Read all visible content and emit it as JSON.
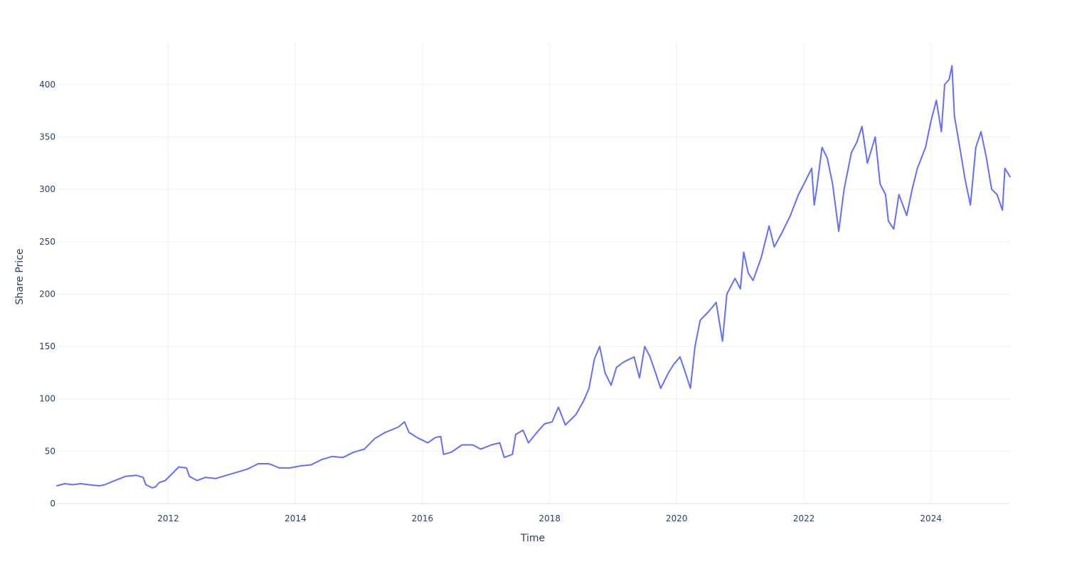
{
  "chart_data": {
    "type": "line",
    "title": "",
    "xlabel": "Time",
    "ylabel": "Share Price",
    "xlim": [
      "2010-04-01",
      "2025-03-31"
    ],
    "ylim": [
      0,
      440
    ],
    "x_ticks": [
      "2012",
      "2014",
      "2016",
      "2018",
      "2020",
      "2022",
      "2024"
    ],
    "y_ticks": [
      "0",
      "50",
      "100",
      "150",
      "200",
      "250",
      "300",
      "350",
      "400"
    ],
    "grid": true,
    "legend": "none",
    "line_color": "#636efa",
    "series": [
      {
        "points": [
          [
            "2010-04-01",
            17
          ],
          [
            "2010-05-15",
            19
          ],
          [
            "2010-07-01",
            18
          ],
          [
            "2010-08-15",
            19
          ],
          [
            "2010-10-01",
            18
          ],
          [
            "2010-12-01",
            17
          ],
          [
            "2011-01-01",
            18
          ],
          [
            "2011-03-01",
            22
          ],
          [
            "2011-05-01",
            26
          ],
          [
            "2011-07-01",
            27
          ],
          [
            "2011-08-10",
            25
          ],
          [
            "2011-08-25",
            18
          ],
          [
            "2011-10-01",
            15
          ],
          [
            "2011-10-20",
            16
          ],
          [
            "2011-11-10",
            20
          ],
          [
            "2011-12-15",
            22
          ],
          [
            "2012-02-01",
            30
          ],
          [
            "2012-03-01",
            35
          ],
          [
            "2012-04-15",
            34
          ],
          [
            "2012-05-01",
            26
          ],
          [
            "2012-06-15",
            22
          ],
          [
            "2012-08-01",
            25
          ],
          [
            "2012-10-01",
            24
          ],
          [
            "2012-12-01",
            27
          ],
          [
            "2013-02-01",
            30
          ],
          [
            "2013-04-01",
            33
          ],
          [
            "2013-06-01",
            38
          ],
          [
            "2013-08-01",
            38
          ],
          [
            "2013-10-01",
            34
          ],
          [
            "2013-12-01",
            34
          ],
          [
            "2014-02-01",
            36
          ],
          [
            "2014-04-01",
            37
          ],
          [
            "2014-06-01",
            42
          ],
          [
            "2014-08-01",
            45
          ],
          [
            "2014-10-01",
            44
          ],
          [
            "2014-12-01",
            49
          ],
          [
            "2015-02-01",
            52
          ],
          [
            "2015-04-01",
            62
          ],
          [
            "2015-06-01",
            68
          ],
          [
            "2015-08-15",
            73
          ],
          [
            "2015-09-20",
            78
          ],
          [
            "2015-10-15",
            68
          ],
          [
            "2015-12-01",
            63
          ],
          [
            "2016-02-01",
            58
          ],
          [
            "2016-03-15",
            63
          ],
          [
            "2016-04-15",
            64
          ],
          [
            "2016-05-01",
            47
          ],
          [
            "2016-06-15",
            49
          ],
          [
            "2016-08-15",
            56
          ],
          [
            "2016-10-15",
            56
          ],
          [
            "2016-12-01",
            52
          ],
          [
            "2017-02-01",
            56
          ],
          [
            "2017-03-20",
            58
          ],
          [
            "2017-04-15",
            44
          ],
          [
            "2017-06-01",
            47
          ],
          [
            "2017-06-20",
            66
          ],
          [
            "2017-08-01",
            70
          ],
          [
            "2017-09-01",
            58
          ],
          [
            "2017-10-15",
            67
          ],
          [
            "2017-12-01",
            76
          ],
          [
            "2018-01-15",
            78
          ],
          [
            "2018-02-20",
            92
          ],
          [
            "2018-04-01",
            75
          ],
          [
            "2018-06-01",
            85
          ],
          [
            "2018-07-15",
            98
          ],
          [
            "2018-08-15",
            110
          ],
          [
            "2018-09-15",
            138
          ],
          [
            "2018-10-15",
            150
          ],
          [
            "2018-11-15",
            125
          ],
          [
            "2018-12-20",
            113
          ],
          [
            "2019-01-20",
            130
          ],
          [
            "2019-03-01",
            135
          ],
          [
            "2019-05-01",
            140
          ],
          [
            "2019-06-01",
            120
          ],
          [
            "2019-07-01",
            150
          ],
          [
            "2019-08-01",
            140
          ],
          [
            "2019-09-01",
            125
          ],
          [
            "2019-10-01",
            110
          ],
          [
            "2019-11-15",
            125
          ],
          [
            "2019-12-15",
            133
          ],
          [
            "2020-01-20",
            140
          ],
          [
            "2020-02-20",
            125
          ],
          [
            "2020-03-20",
            110
          ],
          [
            "2020-04-15",
            150
          ],
          [
            "2020-05-15",
            175
          ],
          [
            "2020-07-01",
            183
          ],
          [
            "2020-08-15",
            192
          ],
          [
            "2020-09-20",
            155
          ],
          [
            "2020-10-15",
            200
          ],
          [
            "2020-12-01",
            215
          ],
          [
            "2021-01-01",
            205
          ],
          [
            "2021-01-20",
            240
          ],
          [
            "2021-02-15",
            220
          ],
          [
            "2021-03-15",
            213
          ],
          [
            "2021-05-01",
            235
          ],
          [
            "2021-06-15",
            265
          ],
          [
            "2021-07-15",
            245
          ],
          [
            "2021-09-01",
            260
          ],
          [
            "2021-10-15",
            275
          ],
          [
            "2021-12-01",
            295
          ],
          [
            "2022-01-01",
            305
          ],
          [
            "2022-02-15",
            320
          ],
          [
            "2022-03-01",
            285
          ],
          [
            "2022-03-15",
            300
          ],
          [
            "2022-04-15",
            340
          ],
          [
            "2022-05-15",
            330
          ],
          [
            "2022-06-15",
            305
          ],
          [
            "2022-07-20",
            260
          ],
          [
            "2022-08-20",
            300
          ],
          [
            "2022-10-01",
            335
          ],
          [
            "2022-11-01",
            345
          ],
          [
            "2022-12-01",
            360
          ],
          [
            "2023-01-01",
            325
          ],
          [
            "2023-02-15",
            350
          ],
          [
            "2023-03-15",
            305
          ],
          [
            "2023-04-15",
            295
          ],
          [
            "2023-05-01",
            270
          ],
          [
            "2023-06-01",
            262
          ],
          [
            "2023-07-01",
            295
          ],
          [
            "2023-08-15",
            275
          ],
          [
            "2023-09-15",
            300
          ],
          [
            "2023-10-15",
            320
          ],
          [
            "2023-12-01",
            340
          ],
          [
            "2024-01-01",
            365
          ],
          [
            "2024-02-01",
            385
          ],
          [
            "2024-03-01",
            355
          ],
          [
            "2024-03-20",
            400
          ],
          [
            "2024-04-15",
            405
          ],
          [
            "2024-05-01",
            418
          ],
          [
            "2024-05-15",
            370
          ],
          [
            "2024-06-15",
            340
          ],
          [
            "2024-07-15",
            310
          ],
          [
            "2024-08-15",
            285
          ],
          [
            "2024-09-15",
            340
          ],
          [
            "2024-10-15",
            355
          ],
          [
            "2024-11-15",
            330
          ],
          [
            "2024-12-15",
            300
          ],
          [
            "2025-01-15",
            295
          ],
          [
            "2025-02-15",
            280
          ],
          [
            "2025-03-01",
            320
          ],
          [
            "2025-03-31",
            312
          ]
        ]
      }
    ]
  }
}
